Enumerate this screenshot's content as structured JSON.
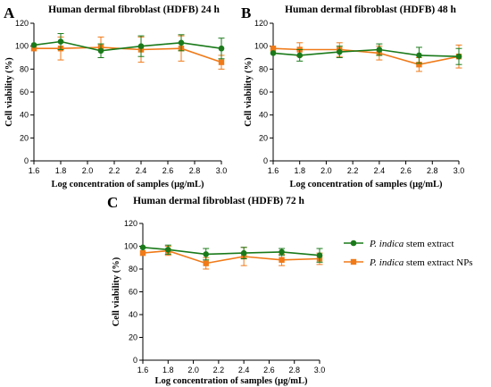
{
  "colors": {
    "green": "#1a7a1a",
    "orange": "#f07a18"
  },
  "legend": [
    {
      "italic": "P. indica",
      "text": " stem extract",
      "color": "#1a7a1a",
      "marker": "circle"
    },
    {
      "italic": "P. indica",
      "text": " stem extract NPs",
      "color": "#f07a18",
      "marker": "square"
    }
  ],
  "chart_data": [
    {
      "panel": "A",
      "type": "line",
      "title": "Human dermal fibroblast  (HDFB) 24 h",
      "xlabel": "Log concentration of samples  (µg/mL)",
      "ylabel": "Cell viability (%)",
      "xlim": [
        1.6,
        3.0
      ],
      "ylim": [
        0,
        120
      ],
      "xticks": [
        "1.6",
        "1.8",
        "2.0",
        "2.2",
        "2.4",
        "2.6",
        "2.8",
        "3.0"
      ],
      "yticks": [
        "0",
        "20",
        "40",
        "60",
        "80",
        "100",
        "120"
      ],
      "series": [
        {
          "name": "P. indica stem extract",
          "x": [
            1.6,
            1.8,
            2.1,
            2.4,
            2.7,
            3.0
          ],
          "y": [
            101,
            104,
            96,
            100,
            103,
            98
          ],
          "err": [
            0,
            7,
            6,
            9,
            7,
            9
          ]
        },
        {
          "name": "P. indica stem extract NPs",
          "x": [
            1.6,
            1.8,
            2.1,
            2.4,
            2.7,
            3.0
          ],
          "y": [
            98,
            98,
            99,
            97,
            98,
            86
          ],
          "err": [
            0,
            10,
            9,
            11,
            11,
            6
          ]
        }
      ]
    },
    {
      "panel": "B",
      "type": "line",
      "title": "Human dermal fibroblast  (HDFB) 48 h",
      "xlabel": "Log concentration of samples  (µg/mL)",
      "ylabel": "Cell viability (%)",
      "xlim": [
        1.6,
        3.0
      ],
      "ylim": [
        0,
        120
      ],
      "xticks": [
        "1.6",
        "1.8",
        "2.0",
        "2.2",
        "2.4",
        "2.6",
        "2.8",
        "3.0"
      ],
      "yticks": [
        "0",
        "20",
        "40",
        "60",
        "80",
        "100",
        "120"
      ],
      "series": [
        {
          "name": "P. indica stem extract",
          "x": [
            1.6,
            1.8,
            2.1,
            2.4,
            2.7,
            3.0
          ],
          "y": [
            94,
            92,
            95,
            97,
            92,
            91
          ],
          "err": [
            0,
            5,
            5,
            5,
            7,
            7
          ]
        },
        {
          "name": "P. indica stem extract NPs",
          "x": [
            1.6,
            1.8,
            2.1,
            2.4,
            2.7,
            3.0
          ],
          "y": [
            98,
            97,
            97,
            94,
            84,
            91
          ],
          "err": [
            0,
            6,
            6,
            6,
            6,
            10
          ]
        }
      ]
    },
    {
      "panel": "C",
      "type": "line",
      "title": "Human dermal fibroblast  (HDFB) 72 h",
      "xlabel": "Log concentration of samples  (µg/mL)",
      "ylabel": "Cell viability (%)",
      "xlim": [
        1.6,
        3.0
      ],
      "ylim": [
        0,
        120
      ],
      "xticks": [
        "1.6",
        "1.8",
        "2.0",
        "2.2",
        "2.4",
        "2.6",
        "2.8",
        "3.0"
      ],
      "yticks": [
        "0",
        "20",
        "40",
        "60",
        "80",
        "100",
        "120"
      ],
      "series": [
        {
          "name": "P. indica stem extract",
          "x": [
            1.6,
            1.8,
            2.1,
            2.4,
            2.7,
            3.0
          ],
          "y": [
            99,
            97,
            93,
            94,
            95,
            92
          ],
          "err": [
            0,
            4,
            5,
            5,
            3,
            6
          ]
        },
        {
          "name": "P. indica stem extract NPs",
          "x": [
            1.6,
            1.8,
            2.1,
            2.4,
            2.7,
            3.0
          ],
          "y": [
            94,
            96,
            85,
            91,
            88,
            89
          ],
          "err": [
            0,
            4,
            5,
            8,
            5,
            5
          ]
        }
      ]
    }
  ]
}
